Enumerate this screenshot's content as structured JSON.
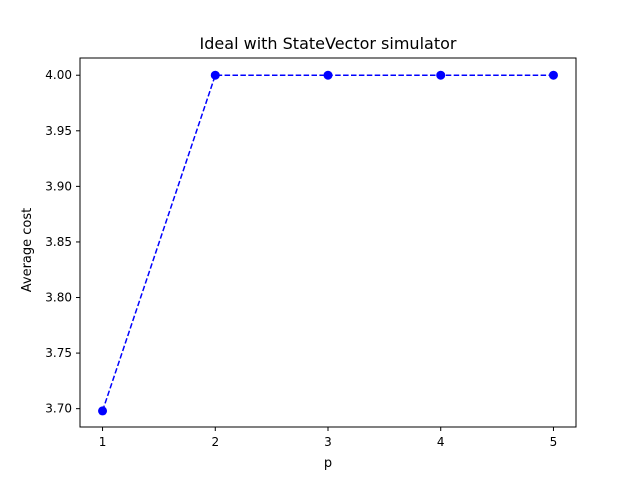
{
  "chart_data": {
    "type": "line",
    "title": "Ideal with StateVector simulator",
    "xlabel": "p",
    "ylabel": "Average cost",
    "x": [
      1,
      2,
      3,
      4,
      5
    ],
    "xticks": [
      "1",
      "2",
      "3",
      "4",
      "5"
    ],
    "xlim": [
      0.8,
      5.2
    ],
    "yticks": [
      "3.70",
      "3.75",
      "3.80",
      "3.85",
      "3.90",
      "3.95",
      "4.00"
    ],
    "ytick_values": [
      3.7,
      3.75,
      3.8,
      3.85,
      3.9,
      3.95,
      4.0
    ],
    "ylim": [
      3.6835,
      4.0155
    ],
    "grid": false,
    "series": [
      {
        "values": [
          3.698,
          4.0,
          4.0,
          4.0,
          4.0
        ],
        "color": "#0000ff",
        "line_style": "dashed",
        "marker": "circle"
      }
    ]
  }
}
